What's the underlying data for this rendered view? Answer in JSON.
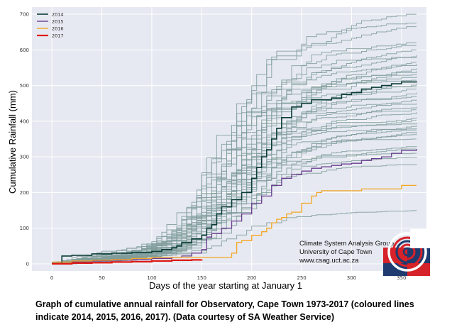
{
  "chart_data": {
    "type": "line",
    "xlabel": "Days of the year starting at January 1",
    "ylabel": "Cumulative Rainfall (mm)",
    "xlim": [
      -20,
      375
    ],
    "ylim": [
      -20,
      720
    ],
    "xticks": [
      0,
      50,
      100,
      150,
      200,
      250,
      300,
      350
    ],
    "yticks": [
      0,
      100,
      200,
      300,
      400,
      500,
      600,
      700
    ],
    "grid": true,
    "legend_position": "top-left",
    "highlight_series": [
      {
        "name": "2014",
        "color": "#0b3d36",
        "width": 1.6,
        "x": [
          0,
          10,
          20,
          40,
          60,
          80,
          100,
          110,
          120,
          125,
          130,
          140,
          150,
          155,
          160,
          165,
          170,
          180,
          190,
          200,
          205,
          210,
          215,
          220,
          225,
          230,
          240,
          250,
          260,
          270,
          280,
          290,
          300,
          310,
          320,
          330,
          340,
          350,
          365
        ],
        "y": [
          0,
          22,
          24,
          28,
          30,
          32,
          35,
          40,
          45,
          50,
          60,
          70,
          80,
          100,
          110,
          140,
          160,
          180,
          200,
          240,
          270,
          300,
          320,
          350,
          380,
          410,
          440,
          450,
          460,
          460,
          465,
          475,
          480,
          490,
          495,
          500,
          505,
          510,
          512
        ]
      },
      {
        "name": "2015",
        "color": "#6a3d8f",
        "width": 1.3,
        "x": [
          0,
          20,
          40,
          60,
          80,
          100,
          110,
          120,
          130,
          140,
          150,
          155,
          160,
          170,
          180,
          190,
          200,
          210,
          220,
          230,
          240,
          250,
          260,
          270,
          280,
          290,
          300,
          310,
          320,
          330,
          340,
          350,
          365
        ],
        "y": [
          0,
          5,
          8,
          10,
          12,
          15,
          15,
          18,
          22,
          30,
          40,
          75,
          85,
          100,
          120,
          140,
          170,
          190,
          220,
          240,
          250,
          260,
          268,
          272,
          276,
          280,
          282,
          290,
          295,
          300,
          310,
          318,
          322
        ]
      },
      {
        "name": "2016",
        "color": "#f5a623",
        "width": 1.3,
        "x": [
          0,
          20,
          40,
          60,
          80,
          100,
          120,
          150,
          170,
          180,
          185,
          190,
          200,
          210,
          215,
          220,
          225,
          230,
          235,
          240,
          250,
          260,
          265,
          270,
          280,
          300,
          310,
          320,
          340,
          350,
          365
        ],
        "y": [
          5,
          8,
          10,
          12,
          15,
          18,
          18,
          18,
          18,
          30,
          60,
          65,
          80,
          90,
          100,
          115,
          125,
          130,
          140,
          145,
          170,
          190,
          200,
          205,
          205,
          205,
          210,
          210,
          210,
          220,
          220
        ]
      },
      {
        "name": "2017",
        "color": "#e01b14",
        "width": 2.2,
        "x": [
          0,
          20,
          40,
          60,
          80,
          100,
          120,
          140,
          150
        ],
        "y": [
          0,
          2,
          3,
          5,
          6,
          8,
          10,
          11,
          12
        ]
      }
    ],
    "background_series_count": 40,
    "background_series_color": "#7f9c9a"
  },
  "credit": {
    "line1": "Climate System Analysis Group",
    "line2": "University of Cape Town",
    "line3": "www.csag.uct.ac.za"
  },
  "caption": "Graph of cumulative annual rainfall for Observatory, Cape Town 1973-2017 (coloured lines indicate 2014, 2015, 2016, 2017). (Data courtesy of SA Weather Service)",
  "colors": {
    "plot_background": "#e6e9f1",
    "grid": "#ffffff",
    "logo_red": "#d62229",
    "logo_navy": "#1f3b6f"
  }
}
